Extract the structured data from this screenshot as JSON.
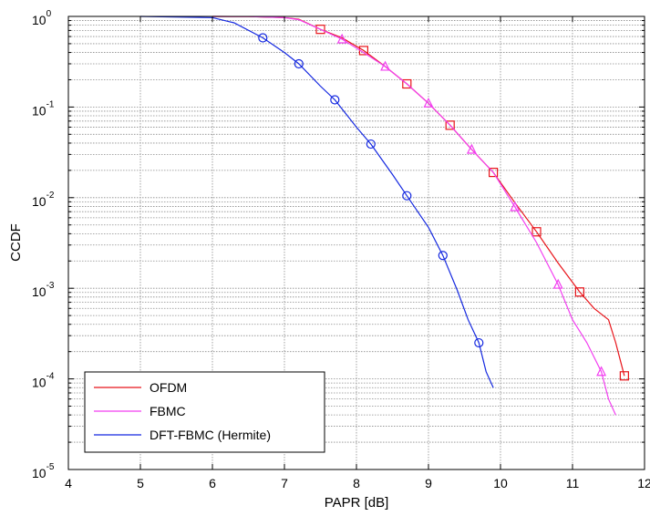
{
  "chart_data": {
    "type": "line",
    "xlabel": "PAPR [dB]",
    "ylabel": "CCDF",
    "xlim": [
      4,
      12
    ],
    "ylim": [
      1e-05,
      1
    ],
    "yscale": "log",
    "grid": true,
    "legend_position": "bottom-left",
    "x_ticks": [
      "4",
      "5",
      "6",
      "7",
      "8",
      "9",
      "10",
      "11",
      "12"
    ],
    "y_ticks": [
      {
        "base": "10",
        "exp": "0"
      },
      {
        "base": "10",
        "exp": "-1"
      },
      {
        "base": "10",
        "exp": "-2"
      },
      {
        "base": "10",
        "exp": "-3"
      },
      {
        "base": "10",
        "exp": "-4"
      },
      {
        "base": "10",
        "exp": "-5"
      }
    ],
    "series": [
      {
        "name": "OFDM",
        "color": "#e8141a",
        "marker": "square",
        "x": [
          6.0,
          6.5,
          7.0,
          7.2,
          7.5,
          7.8,
          8.1,
          8.4,
          8.7,
          9.0,
          9.3,
          9.6,
          9.9,
          10.2,
          10.5,
          10.8,
          11.1,
          11.3,
          11.5,
          11.6,
          11.72
        ],
        "y": [
          1.0,
          0.995,
          0.97,
          0.93,
          0.72,
          0.58,
          0.42,
          0.28,
          0.18,
          0.11,
          0.063,
          0.034,
          0.019,
          0.0088,
          0.0042,
          0.0019,
          0.00091,
          0.0006,
          0.00045,
          0.00025,
          0.000108
        ]
      },
      {
        "name": "FBMC",
        "color": "#f23ff0",
        "marker": "triangle",
        "x": [
          6.0,
          6.5,
          7.0,
          7.2,
          7.5,
          7.8,
          8.1,
          8.4,
          8.7,
          9.0,
          9.3,
          9.6,
          9.9,
          10.2,
          10.5,
          10.8,
          11.0,
          11.2,
          11.4,
          11.5,
          11.6
        ],
        "y": [
          1.0,
          0.995,
          0.97,
          0.92,
          0.72,
          0.56,
          0.4,
          0.28,
          0.18,
          0.11,
          0.063,
          0.034,
          0.019,
          0.0079,
          0.0032,
          0.0011,
          0.00045,
          0.00025,
          0.00012,
          6e-05,
          4e-05
        ]
      },
      {
        "name": "DFT-FBMC (Hermite)",
        "color": "#1428e0",
        "marker": "circle",
        "x": [
          5.0,
          6.0,
          6.3,
          6.7,
          7.0,
          7.2,
          7.5,
          7.7,
          8.0,
          8.2,
          8.5,
          8.7,
          9.0,
          9.2,
          9.4,
          9.55,
          9.7,
          9.8,
          9.9
        ],
        "y": [
          1.0,
          0.97,
          0.85,
          0.58,
          0.4,
          0.3,
          0.17,
          0.12,
          0.06,
          0.039,
          0.018,
          0.0105,
          0.0047,
          0.0023,
          0.00095,
          0.00045,
          0.00025,
          0.00012,
          8e-05
        ]
      }
    ],
    "markers": {
      "OFDM": {
        "x": [
          7.5,
          8.1,
          8.7,
          9.3,
          9.9,
          10.5,
          11.1,
          11.72
        ],
        "y": [
          0.72,
          0.42,
          0.18,
          0.063,
          0.019,
          0.0042,
          0.00091,
          0.000108
        ]
      },
      "FBMC": {
        "x": [
          7.8,
          8.4,
          9.0,
          9.6,
          10.2,
          10.8,
          11.4
        ],
        "y": [
          0.56,
          0.28,
          0.11,
          0.034,
          0.0079,
          0.0011,
          0.00012
        ]
      },
      "DFT-FBMC (Hermite)": {
        "x": [
          6.7,
          7.2,
          7.7,
          8.2,
          8.7,
          9.2,
          9.7
        ],
        "y": [
          0.58,
          0.3,
          0.12,
          0.039,
          0.0105,
          0.0023,
          0.00025
        ]
      }
    }
  }
}
